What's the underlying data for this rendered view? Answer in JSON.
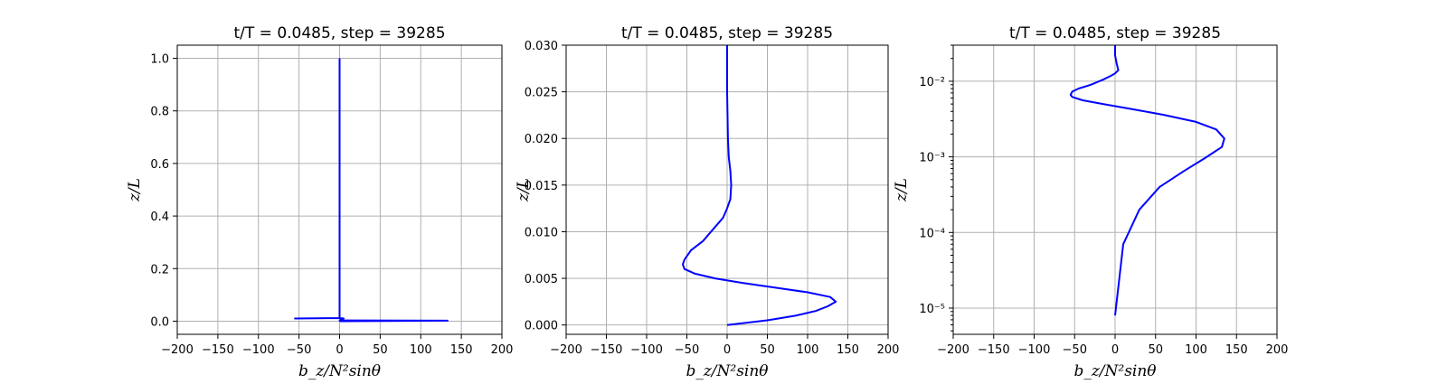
{
  "chart_data": [
    {
      "type": "line",
      "title": "t/T = 0.0485, step = 39285",
      "xlabel": "b_z/N²sinθ",
      "ylabel": "z/L",
      "xlim": [
        -200,
        200
      ],
      "ylim": [
        -0.05,
        1.05
      ],
      "yscale": "linear",
      "grid": true,
      "xticks": [
        -200,
        -150,
        -100,
        -50,
        0,
        50,
        100,
        150,
        200
      ],
      "xtick_labels": [
        "−200",
        "−150",
        "−100",
        "−50",
        "0",
        "50",
        "100",
        "150",
        "200"
      ],
      "yticks": [
        0.0,
        0.2,
        0.4,
        0.6,
        0.8,
        1.0
      ],
      "ytick_labels": [
        "0.0",
        "0.2",
        "0.4",
        "0.6",
        "0.8",
        "1.0"
      ],
      "series": [
        {
          "color": "#0000ff",
          "x": [
            0,
            133,
            0,
            5,
            0,
            -55,
            0,
            0,
            0,
            0
          ],
          "y": [
            0.0,
            0.002,
            0.003,
            0.01,
            0.012,
            0.01,
            0.012,
            0.1,
            0.5,
            1.0
          ]
        }
      ]
    },
    {
      "type": "line",
      "title": "t/T = 0.0485, step = 39285",
      "xlabel": "b_z/N²sinθ",
      "ylabel": "z/L",
      "xlim": [
        -200,
        200
      ],
      "ylim": [
        -0.001,
        0.03
      ],
      "yscale": "linear",
      "grid": true,
      "xticks": [
        -200,
        -150,
        -100,
        -50,
        0,
        50,
        100,
        150,
        200
      ],
      "xtick_labels": [
        "−200",
        "−150",
        "−100",
        "−50",
        "0",
        "50",
        "100",
        "150",
        "200"
      ],
      "yticks": [
        0.0,
        0.005,
        0.01,
        0.015,
        0.02,
        0.025,
        0.03
      ],
      "ytick_labels": [
        "0.000",
        "0.005",
        "0.010",
        "0.015",
        "0.020",
        "0.025",
        "0.030"
      ],
      "series": [
        {
          "color": "#0000ff",
          "x": [
            0,
            50,
            85,
            110,
            125,
            135,
            128,
            100,
            60,
            20,
            -15,
            -40,
            -53,
            -55,
            -53,
            -45,
            -30,
            -15,
            -5,
            0,
            4,
            5,
            4,
            2,
            1,
            0,
            0
          ],
          "y": [
            0.0,
            0.0005,
            0.001,
            0.0015,
            0.002,
            0.0025,
            0.003,
            0.0035,
            0.004,
            0.0045,
            0.005,
            0.0055,
            0.006,
            0.0065,
            0.007,
            0.008,
            0.009,
            0.0105,
            0.0115,
            0.0125,
            0.0135,
            0.015,
            0.0165,
            0.018,
            0.02,
            0.025,
            0.03
          ]
        }
      ]
    },
    {
      "type": "line",
      "title": "t/T = 0.0485, step = 39285",
      "xlabel": "b_z/N²sinθ",
      "ylabel": "z/L",
      "xlim": [
        -200,
        200
      ],
      "ylim": [
        4.5e-06,
        0.03
      ],
      "yscale": "log",
      "grid": true,
      "xticks": [
        -200,
        -150,
        -100,
        -50,
        0,
        50,
        100,
        150,
        200
      ],
      "xtick_labels": [
        "−200",
        "−150",
        "−100",
        "−50",
        "0",
        "50",
        "100",
        "150",
        "200"
      ],
      "yticks": [
        1e-05,
        0.0001,
        0.001,
        0.01
      ],
      "ytick_labels": [
        "10⁻⁵",
        "10⁻⁴",
        "10⁻³",
        "10⁻²"
      ],
      "series": [
        {
          "color": "#0000ff",
          "x": [
            0,
            10,
            30,
            55,
            85,
            110,
            132,
            135,
            125,
            100,
            60,
            20,
            -15,
            -40,
            -53,
            -55,
            -53,
            -45,
            -30,
            -15,
            -5,
            0,
            4,
            2,
            0,
            0
          ],
          "y": [
            8e-06,
            7e-05,
            0.0002,
            0.0004,
            0.00065,
            0.00095,
            0.00135,
            0.00175,
            0.0023,
            0.0029,
            0.0036,
            0.0043,
            0.005,
            0.0056,
            0.0062,
            0.0066,
            0.0073,
            0.008,
            0.009,
            0.0105,
            0.0118,
            0.0127,
            0.014,
            0.017,
            0.022,
            0.03
          ]
        }
      ]
    }
  ]
}
